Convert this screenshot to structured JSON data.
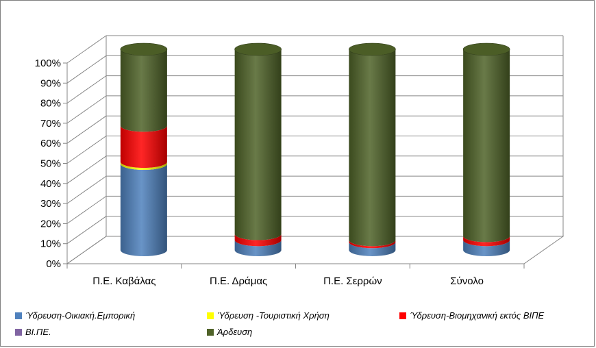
{
  "chart_data": {
    "type": "bar",
    "stacked": true,
    "percent": true,
    "three_d": "cylinder",
    "categories": [
      "Π.Ε. Καβάλας",
      "Π.Ε. Δράμας",
      "Π.Ε. Σερρών",
      "Σύνολο"
    ],
    "yticks": [
      "0%",
      "10%",
      "20%",
      "30%",
      "40%",
      "50%",
      "60%",
      "70%",
      "80%",
      "90%",
      "100%"
    ],
    "ylim": [
      0,
      100
    ],
    "grid": true,
    "legend_position": "bottom",
    "series": [
      {
        "name": "Ύδρευση-Οικιακή.Εμπορική",
        "color": "#4f81bd",
        "values": [
          43,
          5,
          4,
          5
        ]
      },
      {
        "name": "Ύδρευση -Τουριστική Χρήση",
        "color": "#ffff00",
        "values": [
          1,
          0,
          0,
          0
        ]
      },
      {
        "name": "Ύδρευση-Βιομηχανική εκτός ΒΙΠΕ",
        "color": "#ff0000",
        "values": [
          18,
          3,
          1,
          2
        ]
      },
      {
        "name": "ΒΙ.ΠΕ.",
        "color": "#8064a2",
        "values": [
          0,
          0,
          0,
          0
        ]
      },
      {
        "name": "Άρδευση",
        "color": "#4f6228",
        "values": [
          38,
          92,
          95,
          93
        ]
      }
    ]
  }
}
